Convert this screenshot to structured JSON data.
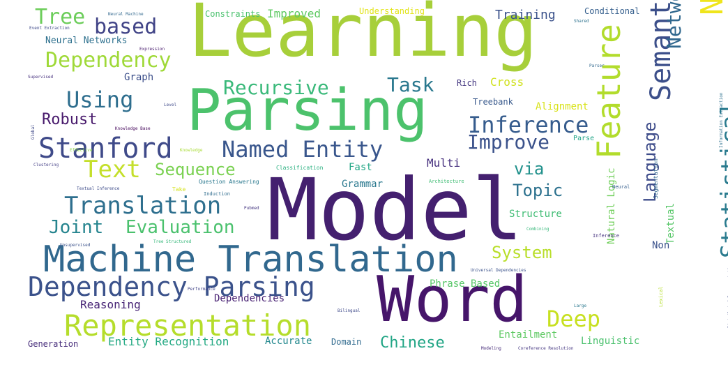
{
  "cloud": {
    "words": [
      {
        "text": "Learning",
        "color": "#a7cf3a"
      },
      {
        "text": "Parsing",
        "color": "#4cc26c"
      },
      {
        "text": "Model",
        "color": "#44206f"
      },
      {
        "text": "Word",
        "color": "#46156a"
      },
      {
        "text": "Machine Translation",
        "color": "#31688e"
      },
      {
        "text": "Representation",
        "color": "#b5dd2b"
      },
      {
        "text": "Dependency Parsing",
        "color": "#3b528b"
      },
      {
        "text": "Natural Language",
        "color": "#efe51c"
      },
      {
        "text": "Feature",
        "color": "#b2dc2c"
      },
      {
        "text": "Semantic",
        "color": "#3c4f8a"
      },
      {
        "text": "Stanford",
        "color": "#3f4a89"
      },
      {
        "text": "Translation",
        "color": "#2e6f8e"
      },
      {
        "text": "Text",
        "color": "#c4df2a"
      },
      {
        "text": "Named Entity",
        "color": "#39568c"
      },
      {
        "text": "Inference",
        "color": "#365c8d"
      },
      {
        "text": "Using",
        "color": "#2e6e8e"
      },
      {
        "text": "Dependency",
        "color": "#9fd938"
      },
      {
        "text": "based",
        "color": "#414487"
      },
      {
        "text": "Tree",
        "color": "#6ccd5a"
      },
      {
        "text": "Recursive",
        "color": "#3ab97a"
      },
      {
        "text": "Task",
        "color": "#2a788e"
      },
      {
        "text": "Improve",
        "color": "#3b528b"
      },
      {
        "text": "Sequence",
        "color": "#7ad151"
      },
      {
        "text": "Joint",
        "color": "#25848e"
      },
      {
        "text": "Evaluation",
        "color": "#4ac16d"
      },
      {
        "text": "Deep",
        "color": "#c7e020"
      },
      {
        "text": "System",
        "color": "#b8de29"
      },
      {
        "text": "Statistical",
        "color": "#2a7b8e"
      },
      {
        "text": "Network",
        "color": "#30688e"
      },
      {
        "text": "Language",
        "color": "#3e4c8a"
      },
      {
        "text": "Topic",
        "color": "#2c718e"
      },
      {
        "text": "via",
        "color": "#21918c"
      },
      {
        "text": "Chinese",
        "color": "#21a585"
      },
      {
        "text": "Robust",
        "color": "#481a6c"
      },
      {
        "text": "Reasoning",
        "color": "#482576"
      },
      {
        "text": "Entity Recognition",
        "color": "#23a983"
      },
      {
        "text": "Training",
        "color": "#3b528b"
      },
      {
        "text": "Improved",
        "color": "#5ec962"
      },
      {
        "text": "Constraints",
        "color": "#4ac16d"
      },
      {
        "text": "Understanding",
        "color": "#e2e418"
      },
      {
        "text": "Conditional",
        "color": "#355f8d"
      },
      {
        "text": "Neural Networks",
        "color": "#2d708e"
      },
      {
        "text": "Graph",
        "color": "#3c4f8a"
      },
      {
        "text": "Alignment",
        "color": "#d8e219"
      },
      {
        "text": "Cross",
        "color": "#d0e11c"
      },
      {
        "text": "Rich",
        "color": "#453781"
      },
      {
        "text": "Treebank",
        "color": "#38598c"
      },
      {
        "text": "Fast",
        "color": "#22a785"
      },
      {
        "text": "Multi",
        "color": "#46307e"
      },
      {
        "text": "Grammar",
        "color": "#2a788e"
      },
      {
        "text": "Structure",
        "color": "#3fbc73"
      },
      {
        "text": "Phrase Based",
        "color": "#56c667"
      },
      {
        "text": "Dependencies",
        "color": "#482173"
      },
      {
        "text": "Entailment",
        "color": "#5ec962"
      },
      {
        "text": "Linguistic",
        "color": "#4ac16d"
      },
      {
        "text": "Accurate",
        "color": "#23888e"
      },
      {
        "text": "Domain",
        "color": "#306a8e"
      },
      {
        "text": "Generation",
        "color": "#472d7b"
      },
      {
        "text": "Natural Logic",
        "color": "#6ece58"
      },
      {
        "text": "Textual",
        "color": "#56c667"
      },
      {
        "text": "Non",
        "color": "#3b528b"
      },
      {
        "text": "Neural Machine",
        "color": "#31688e"
      },
      {
        "text": "Event Extraction",
        "color": "#3e4989"
      },
      {
        "text": "Expression",
        "color": "#481b6d"
      },
      {
        "text": "Supervised",
        "color": "#46307e"
      },
      {
        "text": "Level",
        "color": "#3e4989"
      },
      {
        "text": "Knowledge Base",
        "color": "#46085c"
      },
      {
        "text": "Effective",
        "color": "#8bd646"
      },
      {
        "text": "Global",
        "color": "#3f4889"
      },
      {
        "text": "Clustering",
        "color": "#433e85"
      },
      {
        "text": "Knowledge",
        "color": "#a8db34"
      },
      {
        "text": "Parse",
        "color": "#20a486"
      },
      {
        "text": "Classification",
        "color": "#29af7f"
      },
      {
        "text": "Question Answering",
        "color": "#2a788e"
      },
      {
        "text": "Induction",
        "color": "#2f6c8e"
      },
      {
        "text": "Textual Inference",
        "color": "#3e4c8a"
      },
      {
        "text": "Take",
        "color": "#d5e21a"
      },
      {
        "text": "Unsupervised",
        "color": "#3b528b"
      },
      {
        "text": "Tree Structured",
        "color": "#35b779"
      },
      {
        "text": "Architecture",
        "color": "#3fbc73"
      },
      {
        "text": "Combining",
        "color": "#35b779"
      },
      {
        "text": "Universal Dependencies",
        "color": "#3b528b"
      },
      {
        "text": "Performance",
        "color": "#414487"
      },
      {
        "text": "Bilingual",
        "color": "#3e4989"
      },
      {
        "text": "Modeling",
        "color": "#472c7a"
      },
      {
        "text": "Coreference Resolution",
        "color": "#453781"
      },
      {
        "text": "Segmentation",
        "color": "#31688e"
      },
      {
        "text": "Information Extraction",
        "color": "#2d708e"
      },
      {
        "text": "Distributed Representations",
        "color": "#3e4c8a"
      },
      {
        "text": "Shared",
        "color": "#2c728e"
      },
      {
        "text": "Inference",
        "color": "#46327e"
      },
      {
        "text": "Neural",
        "color": "#355e8d"
      },
      {
        "text": "Large",
        "color": "#2a788e"
      },
      {
        "text": "Lexical",
        "color": "#b5de2b"
      },
      {
        "text": "Pubmed",
        "color": "#453781"
      },
      {
        "text": "Parser",
        "color": "#31688e"
      }
    ]
  }
}
